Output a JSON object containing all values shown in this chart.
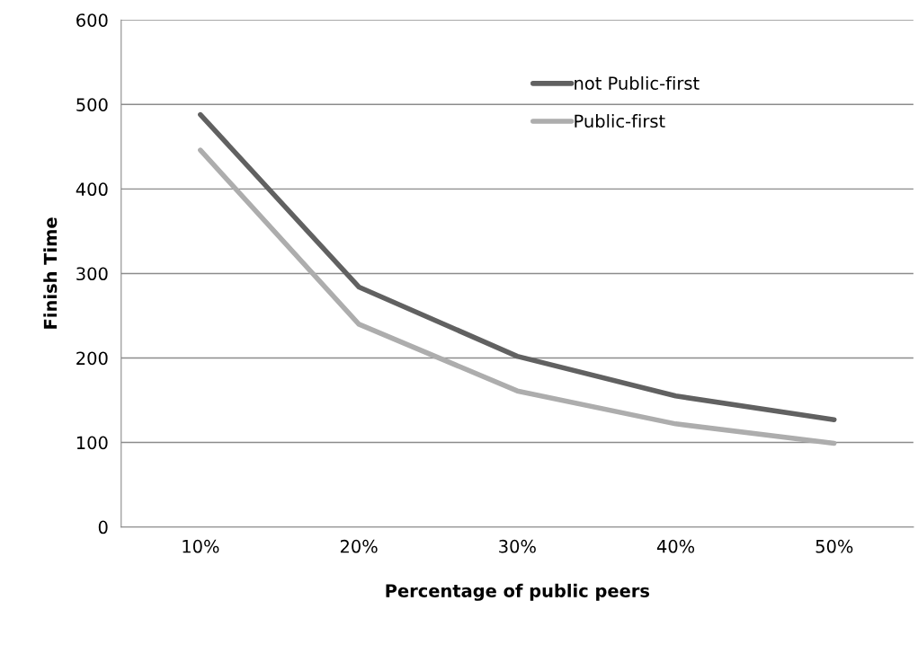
{
  "chart_data": {
    "type": "line",
    "xlabel": "Percentage of public peers",
    "ylabel": "Finish Time",
    "categories": [
      "10%",
      "20%",
      "30%",
      "40%",
      "50%"
    ],
    "series": [
      {
        "name": "not Public-first",
        "color": "#616161",
        "values": [
          488,
          284,
          202,
          155,
          127
        ]
      },
      {
        "name": "Public-first",
        "color": "#adadad",
        "values": [
          446,
          240,
          161,
          122,
          99
        ]
      }
    ],
    "ylim": [
      0,
      600
    ],
    "yticks": [
      0,
      100,
      200,
      300,
      400,
      500,
      600
    ],
    "grid": "y",
    "legend": "top right",
    "marker": "none",
    "line_style": "solid"
  }
}
